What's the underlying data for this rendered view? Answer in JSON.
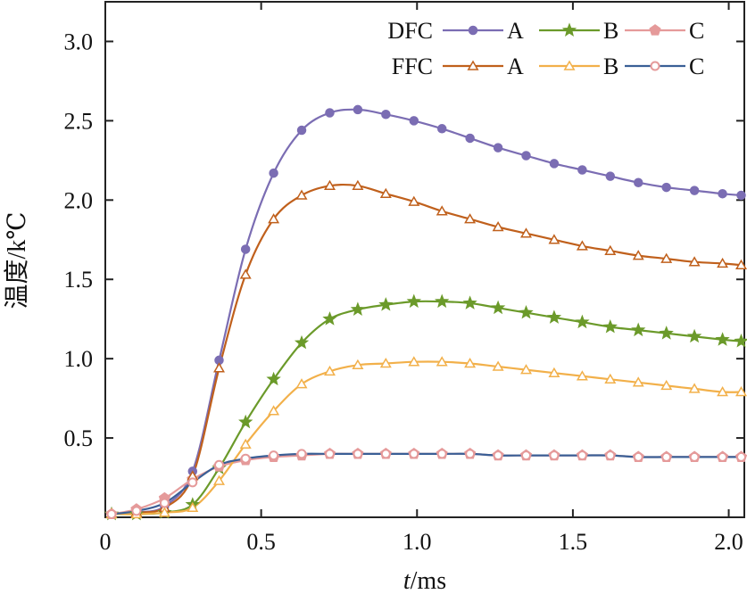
{
  "chart_data": {
    "type": "line",
    "xlabel_italic": "t",
    "xlabel_unit": "/ms",
    "ylabel": "温度/k℃",
    "xlim": [
      0,
      2.05
    ],
    "ylim": [
      0,
      3.25
    ],
    "xticks": [
      0,
      0.5,
      1.0,
      1.5,
      2.0
    ],
    "xtick_labels": [
      "0",
      "0.5",
      "1.0",
      "1.5",
      "2.0"
    ],
    "yticks": [
      0.5,
      1.0,
      1.5,
      2.0,
      2.5,
      3.0
    ],
    "ytick_labels": [
      "0.5",
      "1.0",
      "1.5",
      "2.0",
      "2.5",
      "3.0"
    ],
    "grid": false,
    "legend_placement": "top-right",
    "legend_rows": [
      {
        "label": "DFC",
        "series": [
          "DFC-A",
          "DFC-B",
          "DFC-C"
        ]
      },
      {
        "label": "FFC",
        "series": [
          "FFC-A",
          "FFC-B",
          "FFC-C"
        ]
      }
    ],
    "marker_x": [
      0.02,
      0.1,
      0.19,
      0.28,
      0.365,
      0.45,
      0.54,
      0.63,
      0.72,
      0.81,
      0.9,
      0.99,
      1.08,
      1.17,
      1.26,
      1.35,
      1.44,
      1.53,
      1.62,
      1.71,
      1.8,
      1.89,
      1.98,
      2.04
    ],
    "series": [
      {
        "id": "DFC-A",
        "legend": "A",
        "color": "#7b6db3",
        "marker": "circle",
        "fill": true,
        "values": [
          0.02,
          0.03,
          0.07,
          0.29,
          0.99,
          1.69,
          2.17,
          2.44,
          2.55,
          2.57,
          2.54,
          2.5,
          2.45,
          2.39,
          2.33,
          2.28,
          2.23,
          2.19,
          2.15,
          2.11,
          2.08,
          2.06,
          2.04,
          2.03
        ]
      },
      {
        "id": "DFC-B",
        "legend": "B",
        "color": "#6b9a2a",
        "marker": "star",
        "fill": true,
        "values": [
          0.02,
          0.02,
          0.03,
          0.08,
          0.31,
          0.6,
          0.87,
          1.1,
          1.25,
          1.31,
          1.34,
          1.36,
          1.36,
          1.35,
          1.32,
          1.29,
          1.26,
          1.23,
          1.2,
          1.18,
          1.16,
          1.14,
          1.12,
          1.11
        ]
      },
      {
        "id": "DFC-C",
        "legend": "C",
        "color": "#e59a9a",
        "marker": "pentagon",
        "fill": true,
        "values": [
          0.02,
          0.05,
          0.12,
          0.24,
          0.32,
          0.36,
          0.38,
          0.39,
          0.4,
          0.4,
          0.4,
          0.4,
          0.4,
          0.4,
          0.39,
          0.39,
          0.39,
          0.39,
          0.39,
          0.38,
          0.38,
          0.38,
          0.38,
          0.38
        ]
      },
      {
        "id": "FFC-A",
        "legend": "A",
        "color": "#c0601c",
        "marker": "triangle",
        "fill": false,
        "values": [
          0.02,
          0.03,
          0.06,
          0.26,
          0.94,
          1.53,
          1.88,
          2.03,
          2.09,
          2.09,
          2.04,
          1.99,
          1.93,
          1.88,
          1.83,
          1.79,
          1.75,
          1.71,
          1.68,
          1.65,
          1.63,
          1.61,
          1.6,
          1.59
        ]
      },
      {
        "id": "FFC-B",
        "legend": "B",
        "color": "#f2b04a",
        "marker": "triangle",
        "fill": false,
        "values": [
          0.02,
          0.02,
          0.03,
          0.06,
          0.23,
          0.46,
          0.67,
          0.84,
          0.92,
          0.96,
          0.97,
          0.98,
          0.98,
          0.97,
          0.95,
          0.93,
          0.91,
          0.89,
          0.87,
          0.85,
          0.83,
          0.81,
          0.79,
          0.79
        ]
      },
      {
        "id": "FFC-C",
        "legend": "C",
        "color": "#3a5f96",
        "marker": "circle-open",
        "fill": false,
        "values": [
          0.02,
          0.04,
          0.09,
          0.22,
          0.33,
          0.37,
          0.39,
          0.4,
          0.4,
          0.4,
          0.4,
          0.4,
          0.4,
          0.4,
          0.39,
          0.39,
          0.39,
          0.39,
          0.39,
          0.38,
          0.38,
          0.38,
          0.38,
          0.38
        ]
      }
    ]
  }
}
